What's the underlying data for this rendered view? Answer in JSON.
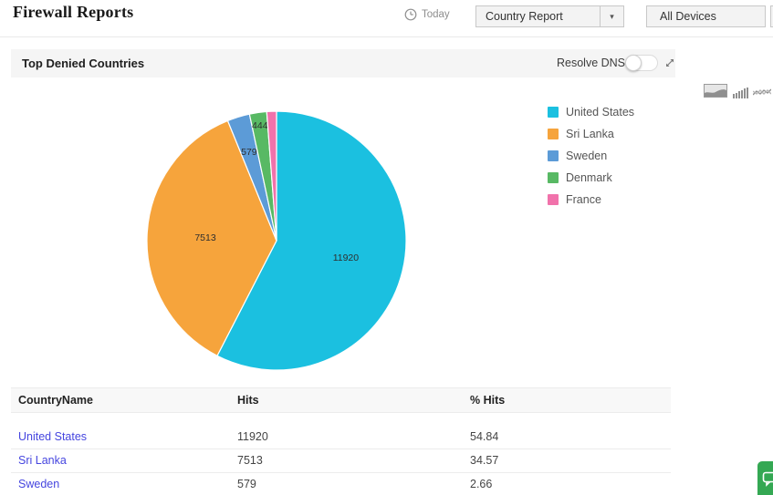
{
  "header": {
    "title": "Firewall Reports",
    "time": {
      "label": "Today",
      "icon": "clock-icon"
    },
    "report_dropdown": {
      "value": "Country Report"
    },
    "device_dropdown": {
      "value": "All Devices"
    }
  },
  "panel": {
    "title": "Top Denied Countries",
    "resolve_dns": {
      "label": "Resolve DNS",
      "state": "off"
    }
  },
  "chart_toolbar": {
    "icons": [
      {
        "name": "area-chart-icon",
        "selected": true
      },
      {
        "name": "bar-chart-icon",
        "selected": false
      },
      {
        "name": "line-chart-icon",
        "selected": false
      }
    ]
  },
  "chart_data": {
    "type": "pie",
    "title": "Top Denied Countries",
    "legend_position": "right",
    "direction": "clockwise",
    "start_angle_deg": 0,
    "series": [
      {
        "label": "United States",
        "value": 11920,
        "data_label": "11920",
        "color": "#1BC0E0"
      },
      {
        "label": "Sri Lanka",
        "value": 7513,
        "data_label": "7513",
        "color": "#F6A43C"
      },
      {
        "label": "Sweden",
        "value": 579,
        "data_label": "579",
        "color": "#5C9BD7"
      },
      {
        "label": "Denmark",
        "value": 444,
        "data_label": "444",
        "color": "#58B964"
      },
      {
        "label": "France",
        "value": 250,
        "data_label": "",
        "color": "#F172AB",
        "estimated": true
      }
    ]
  },
  "table": {
    "columns": [
      "CountryName",
      "Hits",
      "% Hits"
    ],
    "rows": [
      {
        "country": "United States",
        "hits": "11920",
        "pct_hits": "54.84"
      },
      {
        "country": "Sri Lanka",
        "hits": "7513",
        "pct_hits": "34.57"
      },
      {
        "country": "Sweden",
        "hits": "579",
        "pct_hits": "2.66"
      }
    ]
  },
  "colors": {
    "link": "#4545DF",
    "panel_bg": "#F5F5F5",
    "chat_green": "#34A853"
  }
}
